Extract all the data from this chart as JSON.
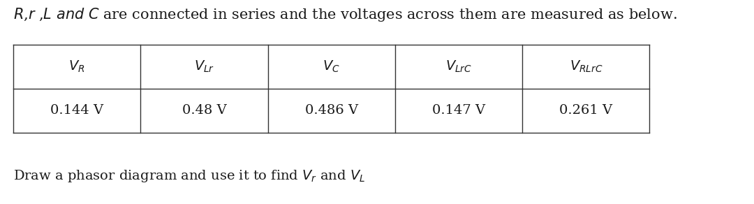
{
  "title": "R,r ,L and C are connected in series and the voltages across them are measured as below.",
  "title_italic_parts": [
    "R",
    "r",
    "L",
    "C"
  ],
  "col_headers": [
    "$V_R$",
    "$V_{Lr}$",
    "$V_C$",
    "$V_{LrC}$",
    "$V_{RLrC}$"
  ],
  "values": [
    "0.144 V",
    "0.48 V",
    "0.486 V",
    "0.147 V",
    "0.261 V"
  ],
  "footer": "Draw a phasor diagram and use it to find $V_r$ and $V_L$",
  "background_color": "#ffffff",
  "text_color": "#1a1a1a",
  "table_line_color": "#333333",
  "font_size_title": 15,
  "font_size_table": 14,
  "font_size_footer": 14
}
